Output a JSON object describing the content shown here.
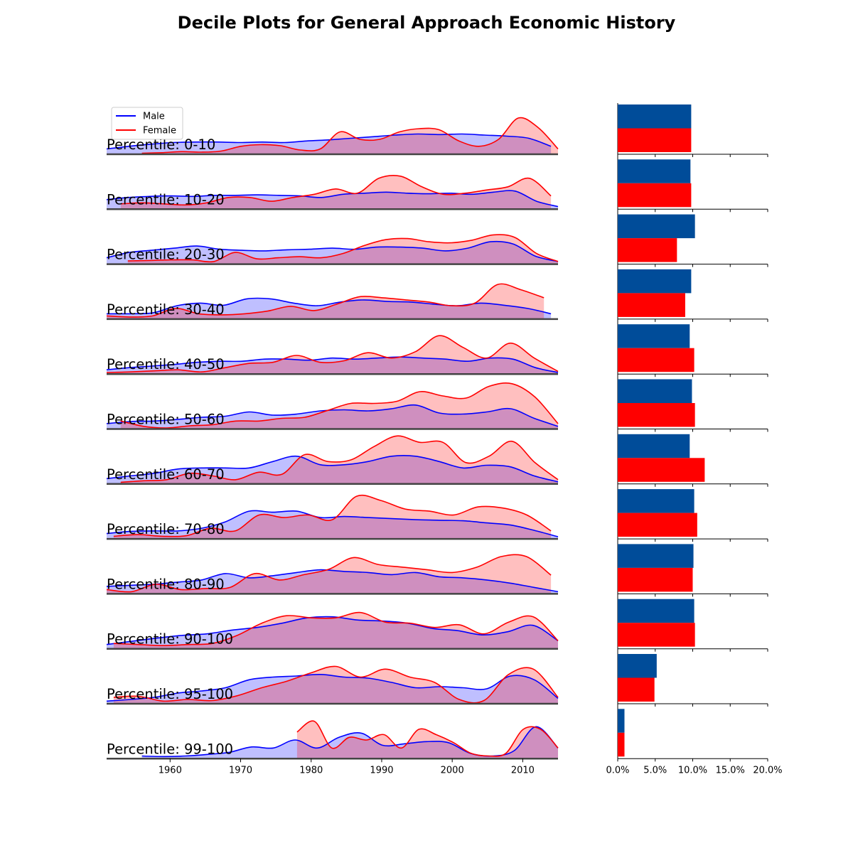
{
  "title": "Decile Plots for General Approach Economic History",
  "colors": {
    "male": "#0000ff",
    "female": "#ff0000",
    "male_bar": "#004c99",
    "female_bar": "#ff0000",
    "baseline": "#444444"
  },
  "chart_data": [
    {
      "type": "area",
      "subtype": "ridgeline-kde",
      "xticks": [
        "1960",
        "1970",
        "1980",
        "1990",
        "2000",
        "2010"
      ],
      "xlim": [
        1951,
        2015
      ],
      "legend": {
        "placement": "top-left",
        "entries": [
          "Male",
          "Female"
        ]
      },
      "series": [
        {
          "name": "Male",
          "color": "#0000ff"
        },
        {
          "name": "Female",
          "color": "#ff0000"
        }
      ],
      "rows": [
        {
          "label": "Percentile: 0-10",
          "male": {
            "start": 1951,
            "end": 2014,
            "y": [
              0.1,
              0.15,
              0.19,
              0.22,
              0.23,
              0.23,
              0.22,
              0.23,
              0.22,
              0.25,
              0.27,
              0.3,
              0.33,
              0.36,
              0.38,
              0.37,
              0.38,
              0.36,
              0.34,
              0.3,
              0.15
            ]
          },
          "female": {
            "start": 1956,
            "end": 2015,
            "y": [
              0.02,
              0.03,
              0.05,
              0.04,
              0.06,
              0.15,
              0.18,
              0.16,
              0.08,
              0.1,
              0.42,
              0.28,
              0.28,
              0.42,
              0.48,
              0.46,
              0.25,
              0.15,
              0.28,
              0.68,
              0.5,
              0.1
            ]
          }
        },
        {
          "label": "Percentile: 10-20",
          "male": {
            "start": 1951,
            "end": 2015,
            "y": [
              0.18,
              0.22,
              0.24,
              0.25,
              0.24,
              0.26,
              0.26,
              0.27,
              0.26,
              0.25,
              0.22,
              0.28,
              0.3,
              0.32,
              0.3,
              0.29,
              0.3,
              0.28,
              0.32,
              0.34,
              0.15,
              0.05
            ]
          },
          "female": {
            "start": 1953,
            "end": 2014,
            "y": [
              0.1,
              0.12,
              0.1,
              0.08,
              0.12,
              0.22,
              0.22,
              0.15,
              0.22,
              0.28,
              0.38,
              0.3,
              0.58,
              0.62,
              0.42,
              0.28,
              0.3,
              0.36,
              0.42,
              0.58,
              0.25
            ]
          }
        },
        {
          "label": "Percentile: 20-30",
          "male": {
            "start": 1951,
            "end": 2015,
            "y": [
              0.12,
              0.22,
              0.26,
              0.3,
              0.34,
              0.28,
              0.26,
              0.25,
              0.27,
              0.28,
              0.3,
              0.28,
              0.32,
              0.32,
              0.3,
              0.25,
              0.3,
              0.42,
              0.38,
              0.15,
              0.05
            ]
          },
          "female": {
            "start": 1954,
            "end": 2015,
            "y": [
              0.06,
              0.07,
              0.08,
              0.08,
              0.05,
              0.22,
              0.1,
              0.12,
              0.14,
              0.12,
              0.2,
              0.35,
              0.46,
              0.48,
              0.42,
              0.4,
              0.45,
              0.55,
              0.5,
              0.2,
              0.05
            ]
          }
        },
        {
          "label": "Percentile: 30-40",
          "male": {
            "start": 1951,
            "end": 2014,
            "y": [
              0.1,
              0.1,
              0.12,
              0.25,
              0.3,
              0.26,
              0.38,
              0.38,
              0.3,
              0.25,
              0.32,
              0.36,
              0.33,
              0.32,
              0.28,
              0.25,
              0.3,
              0.26,
              0.2,
              0.1
            ]
          },
          "female": {
            "start": 1951,
            "end": 2013,
            "y": [
              0.06,
              0.04,
              0.06,
              0.2,
              0.1,
              0.08,
              0.1,
              0.15,
              0.24,
              0.16,
              0.28,
              0.42,
              0.4,
              0.36,
              0.32,
              0.25,
              0.3,
              0.65,
              0.55,
              0.4
            ]
          }
        },
        {
          "label": "Percentile: 40-50",
          "male": {
            "start": 1951,
            "end": 2015,
            "y": [
              0.08,
              0.12,
              0.15,
              0.18,
              0.22,
              0.24,
              0.24,
              0.28,
              0.28,
              0.26,
              0.3,
              0.28,
              0.3,
              0.32,
              0.3,
              0.28,
              0.24,
              0.3,
              0.28,
              0.12,
              0.03
            ]
          },
          "female": {
            "start": 1951,
            "end": 2015,
            "y": [
              0.03,
              0.04,
              0.06,
              0.08,
              0.04,
              0.12,
              0.2,
              0.22,
              0.35,
              0.22,
              0.25,
              0.4,
              0.3,
              0.42,
              0.72,
              0.5,
              0.3,
              0.58,
              0.3,
              0.05
            ]
          }
        },
        {
          "label": "Percentile: 50-60",
          "male": {
            "start": 1951,
            "end": 2015,
            "y": [
              0.1,
              0.14,
              0.15,
              0.18,
              0.22,
              0.24,
              0.32,
              0.26,
              0.28,
              0.34,
              0.36,
              0.34,
              0.38,
              0.45,
              0.3,
              0.28,
              0.32,
              0.38,
              0.2,
              0.05
            ]
          },
          "female": {
            "start": 1953,
            "end": 2015,
            "y": [
              0.15,
              0.05,
              0.02,
              0.06,
              0.08,
              0.15,
              0.15,
              0.2,
              0.22,
              0.35,
              0.48,
              0.48,
              0.52,
              0.7,
              0.62,
              0.58,
              0.8,
              0.85,
              0.6,
              0.1
            ]
          }
        },
        {
          "label": "Percentile: 60-70",
          "male": {
            "start": 1951,
            "end": 2015,
            "y": [
              0.1,
              0.15,
              0.2,
              0.28,
              0.3,
              0.3,
              0.3,
              0.42,
              0.52,
              0.36,
              0.36,
              0.42,
              0.52,
              0.52,
              0.42,
              0.3,
              0.35,
              0.32,
              0.15,
              0.04
            ]
          },
          "female": {
            "start": 1953,
            "end": 2015,
            "y": [
              0.03,
              0.06,
              0.08,
              0.2,
              0.15,
              0.08,
              0.22,
              0.18,
              0.55,
              0.42,
              0.45,
              0.7,
              0.9,
              0.78,
              0.78,
              0.4,
              0.52,
              0.8,
              0.4,
              0.08
            ]
          }
        },
        {
          "label": "Percentile: 70-80",
          "male": {
            "start": 1951,
            "end": 2015,
            "y": [
              0.1,
              0.14,
              0.15,
              0.15,
              0.2,
              0.32,
              0.52,
              0.5,
              0.52,
              0.4,
              0.42,
              0.4,
              0.38,
              0.36,
              0.35,
              0.34,
              0.3,
              0.26,
              0.16,
              0.04
            ]
          },
          "female": {
            "start": 1952,
            "end": 2014,
            "y": [
              0.05,
              0.08,
              0.05,
              0.06,
              0.2,
              0.15,
              0.45,
              0.4,
              0.45,
              0.36,
              0.8,
              0.72,
              0.56,
              0.52,
              0.45,
              0.6,
              0.58,
              0.45,
              0.15
            ]
          }
        },
        {
          "label": "Percentile: 80-90",
          "male": {
            "start": 1951,
            "end": 2015,
            "y": [
              0.14,
              0.16,
              0.18,
              0.22,
              0.26,
              0.38,
              0.3,
              0.34,
              0.4,
              0.45,
              0.42,
              0.4,
              0.36,
              0.4,
              0.32,
              0.3,
              0.26,
              0.2,
              0.12,
              0.04
            ]
          },
          "female": {
            "start": 1951,
            "end": 2014,
            "y": [
              0.08,
              0.04,
              0.18,
              0.08,
              0.1,
              0.12,
              0.38,
              0.26,
              0.36,
              0.46,
              0.68,
              0.55,
              0.5,
              0.45,
              0.4,
              0.5,
              0.7,
              0.7,
              0.35
            ]
          }
        },
        {
          "label": "Percentile: 90-100",
          "male": {
            "start": 1951,
            "end": 2015,
            "y": [
              0.08,
              0.14,
              0.2,
              0.25,
              0.28,
              0.35,
              0.4,
              0.48,
              0.58,
              0.6,
              0.54,
              0.52,
              0.48,
              0.38,
              0.34,
              0.26,
              0.32,
              0.44,
              0.15
            ]
          },
          "female": {
            "start": 1952,
            "end": 2015,
            "y": [
              0.1,
              0.08,
              0.06,
              0.08,
              0.1,
              0.25,
              0.48,
              0.62,
              0.58,
              0.58,
              0.68,
              0.5,
              0.48,
              0.4,
              0.45,
              0.28,
              0.5,
              0.6,
              0.15
            ]
          }
        },
        {
          "label": "Percentile: 95-100",
          "male": {
            "start": 1951,
            "end": 2015,
            "y": [
              0.05,
              0.08,
              0.12,
              0.2,
              0.24,
              0.3,
              0.45,
              0.5,
              0.52,
              0.55,
              0.5,
              0.48,
              0.4,
              0.3,
              0.32,
              0.3,
              0.28,
              0.52,
              0.45,
              0.1
            ]
          },
          "female": {
            "start": 1952,
            "end": 2015,
            "y": [
              0.12,
              0.14,
              0.05,
              0.08,
              0.06,
              0.15,
              0.3,
              0.42,
              0.58,
              0.7,
              0.5,
              0.65,
              0.5,
              0.4,
              0.08,
              0.06,
              0.55,
              0.65,
              0.12
            ]
          }
        },
        {
          "label": "Percentile: 99-100",
          "male": {
            "start": 1956,
            "end": 2015,
            "y": [
              0.05,
              0.04,
              0.05,
              0.08,
              0.12,
              0.22,
              0.2,
              0.35,
              0.2,
              0.4,
              0.48,
              0.25,
              0.28,
              0.32,
              0.3,
              0.1,
              0.05,
              0.15,
              0.6,
              0.2
            ]
          },
          "female": {
            "start": 1978,
            "end": 2015,
            "y": [
              0.5,
              0.7,
              0.2,
              0.4,
              0.35,
              0.45,
              0.2,
              0.55,
              0.45,
              0.3,
              0.1,
              0.05,
              0.1,
              0.55,
              0.55,
              0.2
            ]
          }
        }
      ]
    },
    {
      "type": "bar",
      "orientation": "horizontal",
      "categories": [
        "0-10",
        "10-20",
        "20-30",
        "30-40",
        "40-50",
        "50-60",
        "60-70",
        "70-80",
        "80-90",
        "90-100",
        "95-100",
        "99-100"
      ],
      "series": [
        {
          "name": "Male",
          "color": "#004c99",
          "values": [
            9.8,
            9.7,
            10.3,
            9.8,
            9.6,
            9.9,
            9.6,
            10.2,
            10.1,
            10.2,
            5.2,
            0.9
          ]
        },
        {
          "name": "Female",
          "color": "#ff0000",
          "values": [
            9.8,
            9.8,
            7.9,
            9.0,
            10.2,
            10.3,
            11.6,
            10.6,
            10.0,
            10.3,
            4.9,
            0.9
          ]
        }
      ],
      "xlim": [
        0,
        20
      ],
      "xticks": [
        "0.0%",
        "5.0%",
        "10.0%",
        "15.0%",
        "20.0%"
      ]
    }
  ]
}
